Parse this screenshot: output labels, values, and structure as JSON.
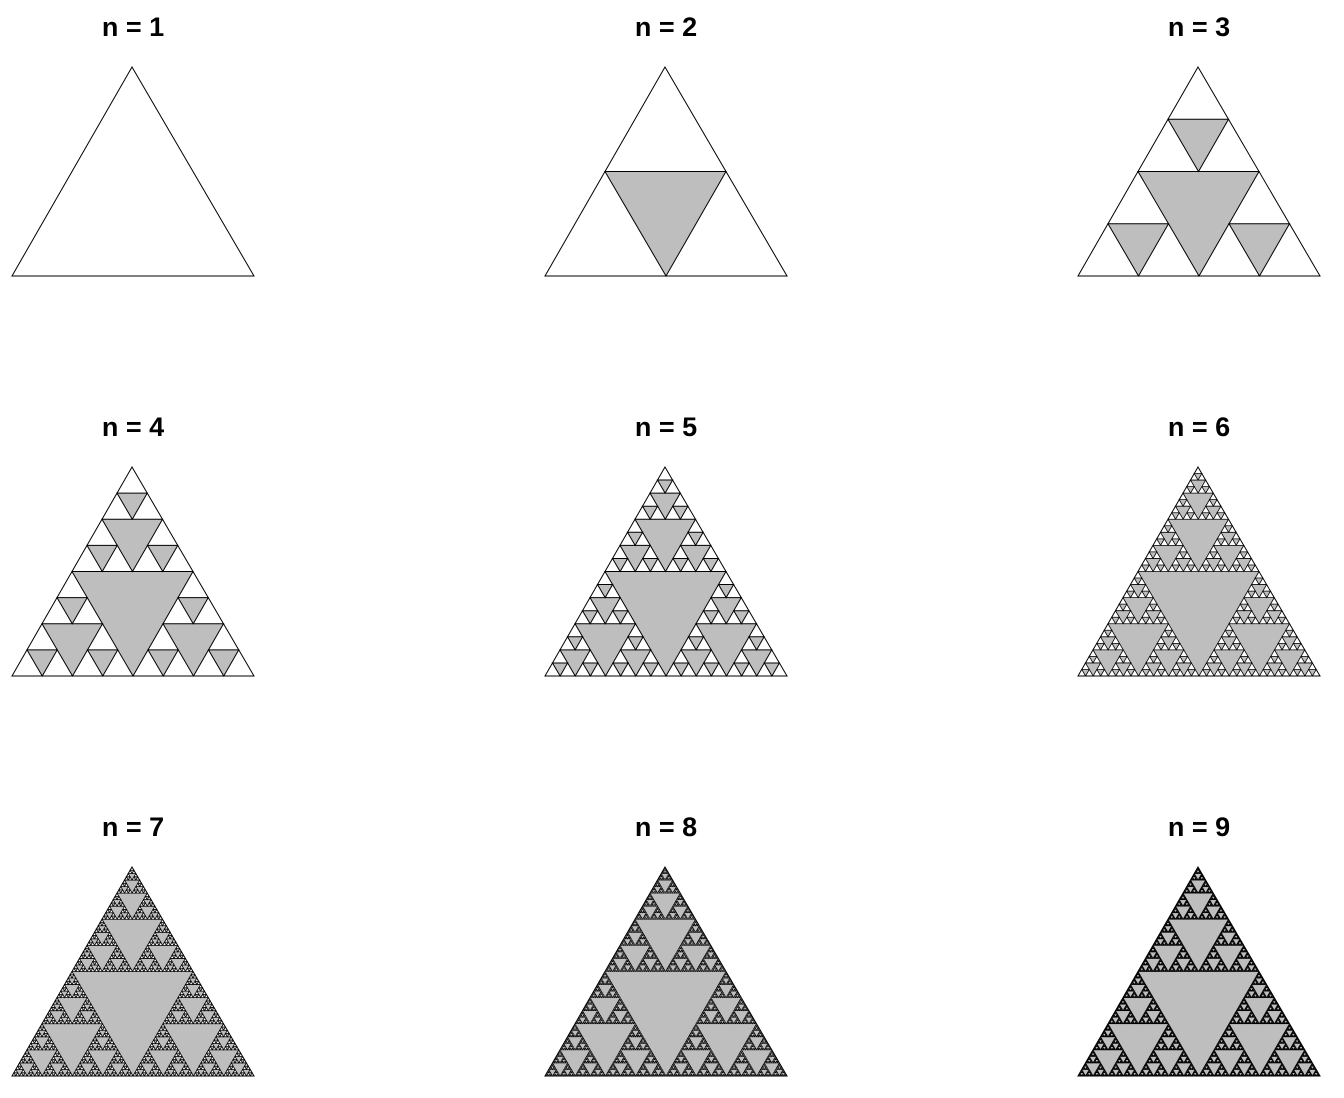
{
  "figure": {
    "panels": [
      {
        "title": "n = 1",
        "n": 1
      },
      {
        "title": "n = 2",
        "n": 2
      },
      {
        "title": "n = 3",
        "n": 3
      },
      {
        "title": "n = 4",
        "n": 4
      },
      {
        "title": "n = 5",
        "n": 5
      },
      {
        "title": "n = 6",
        "n": 6
      },
      {
        "title": "n = 7",
        "n": 7
      },
      {
        "title": "n = 8",
        "n": 8
      },
      {
        "title": "n = 9",
        "n": 9
      }
    ]
  },
  "colors": {
    "background": "#ffffff",
    "outer_fill": "#ffffff",
    "removed_fill": "#bebebe",
    "stroke": "#000000"
  }
}
